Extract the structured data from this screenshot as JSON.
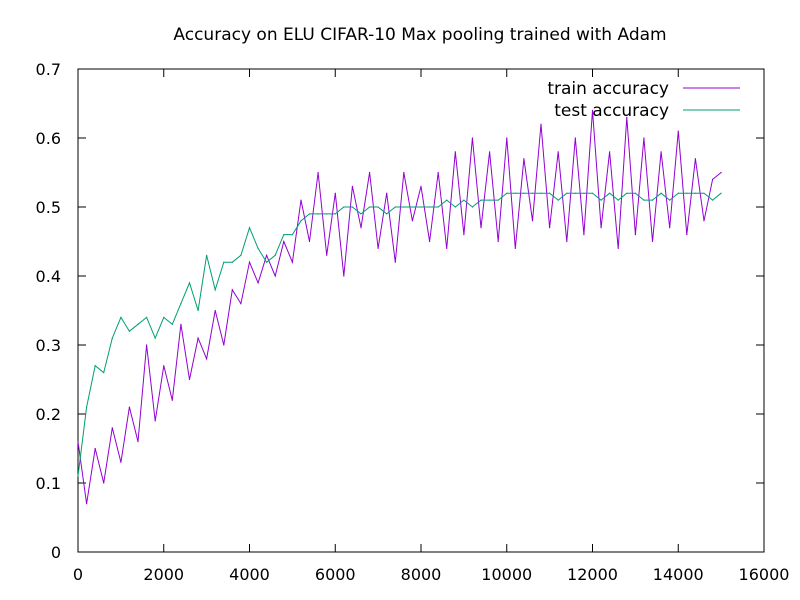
{
  "chart_data": {
    "type": "line",
    "title": "Accuracy on ELU CIFAR-10 Max pooling trained with Adam",
    "xlabel": "",
    "ylabel": "",
    "xlim": [
      0,
      16000
    ],
    "ylim": [
      0,
      0.7
    ],
    "x_ticks": [
      "0",
      "2000",
      "4000",
      "6000",
      "8000",
      "10000",
      "12000",
      "14000",
      "16000"
    ],
    "y_ticks": [
      "0",
      "0.1",
      "0.2",
      "0.3",
      "0.4",
      "0.5",
      "0.6",
      "0.7"
    ],
    "grid": false,
    "legend_position": "top-right",
    "series": [
      {
        "name": "train accuracy",
        "color": "#9400d3",
        "x": [
          0,
          200,
          400,
          600,
          800,
          1000,
          1200,
          1400,
          1600,
          1800,
          2000,
          2200,
          2400,
          2600,
          2800,
          3000,
          3200,
          3400,
          3600,
          3800,
          4000,
          4200,
          4400,
          4600,
          4800,
          5000,
          5200,
          5400,
          5600,
          5800,
          6000,
          6200,
          6400,
          6600,
          6800,
          7000,
          7200,
          7400,
          7600,
          7800,
          8000,
          8200,
          8400,
          8600,
          8800,
          9000,
          9200,
          9400,
          9600,
          9800,
          10000,
          10200,
          10400,
          10600,
          10800,
          11000,
          11200,
          11400,
          11600,
          11800,
          12000,
          12200,
          12400,
          12600,
          12800,
          13000,
          13200,
          13400,
          13600,
          13800,
          14000,
          14200,
          14400,
          14600,
          14800,
          15000
        ],
        "values": [
          0.16,
          0.07,
          0.15,
          0.1,
          0.18,
          0.13,
          0.21,
          0.16,
          0.3,
          0.19,
          0.27,
          0.22,
          0.33,
          0.25,
          0.31,
          0.28,
          0.35,
          0.3,
          0.38,
          0.36,
          0.42,
          0.39,
          0.43,
          0.4,
          0.45,
          0.42,
          0.51,
          0.45,
          0.55,
          0.43,
          0.52,
          0.4,
          0.53,
          0.47,
          0.55,
          0.44,
          0.52,
          0.42,
          0.55,
          0.48,
          0.53,
          0.45,
          0.55,
          0.44,
          0.58,
          0.46,
          0.6,
          0.47,
          0.58,
          0.45,
          0.6,
          0.44,
          0.57,
          0.48,
          0.62,
          0.47,
          0.58,
          0.45,
          0.6,
          0.46,
          0.64,
          0.47,
          0.58,
          0.44,
          0.63,
          0.46,
          0.6,
          0.45,
          0.58,
          0.47,
          0.61,
          0.46,
          0.57,
          0.48,
          0.54,
          0.55
        ]
      },
      {
        "name": "test accuracy",
        "color": "#009e73",
        "x": [
          0,
          200,
          400,
          600,
          800,
          1000,
          1200,
          1400,
          1600,
          1800,
          2000,
          2200,
          2400,
          2600,
          2800,
          3000,
          3200,
          3400,
          3600,
          3800,
          4000,
          4200,
          4400,
          4600,
          4800,
          5000,
          5200,
          5400,
          5600,
          5800,
          6000,
          6200,
          6400,
          6600,
          6800,
          7000,
          7200,
          7400,
          7600,
          7800,
          8000,
          8200,
          8400,
          8600,
          8800,
          9000,
          9200,
          9400,
          9600,
          9800,
          10000,
          10200,
          10400,
          10600,
          10800,
          11000,
          11200,
          11400,
          11600,
          11800,
          12000,
          12200,
          12400,
          12600,
          12800,
          13000,
          13200,
          13400,
          13600,
          13800,
          14000,
          14200,
          14400,
          14600,
          14800,
          15000
        ],
        "values": [
          0.11,
          0.21,
          0.27,
          0.26,
          0.31,
          0.34,
          0.32,
          0.33,
          0.34,
          0.31,
          0.34,
          0.33,
          0.36,
          0.39,
          0.35,
          0.43,
          0.38,
          0.42,
          0.42,
          0.43,
          0.47,
          0.44,
          0.42,
          0.43,
          0.46,
          0.46,
          0.48,
          0.49,
          0.49,
          0.49,
          0.49,
          0.5,
          0.5,
          0.49,
          0.5,
          0.5,
          0.49,
          0.5,
          0.5,
          0.5,
          0.5,
          0.5,
          0.5,
          0.51,
          0.5,
          0.51,
          0.5,
          0.51,
          0.51,
          0.51,
          0.52,
          0.52,
          0.52,
          0.52,
          0.52,
          0.52,
          0.51,
          0.52,
          0.52,
          0.52,
          0.52,
          0.51,
          0.52,
          0.51,
          0.52,
          0.52,
          0.51,
          0.51,
          0.52,
          0.51,
          0.52,
          0.52,
          0.52,
          0.52,
          0.51,
          0.52
        ]
      }
    ]
  }
}
